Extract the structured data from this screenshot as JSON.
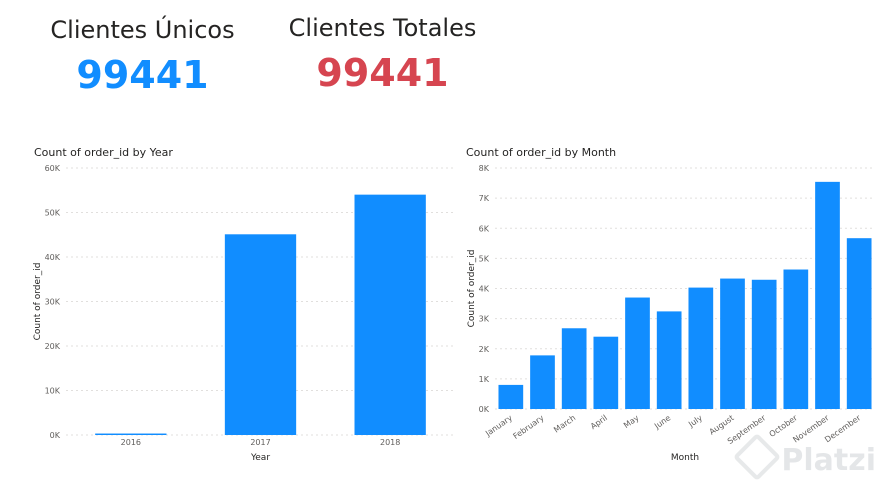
{
  "kpis": {
    "unique": {
      "label": "Clientes Únicos",
      "value": "99441"
    },
    "total": {
      "label": "Clientes Totales",
      "value": "99441"
    }
  },
  "watermark": "Platzi",
  "chart_data": [
    {
      "type": "bar",
      "title": "Count of order_id by Year",
      "xlabel": "Year",
      "ylabel": "Count of order_id",
      "categories": [
        "2016",
        "2017",
        "2018"
      ],
      "values": [
        329,
        45101,
        54011
      ],
      "ylim": [
        0,
        60000
      ],
      "yticks": [
        0,
        10000,
        20000,
        30000,
        40000,
        50000,
        60000
      ],
      "ytick_labels": [
        "0K",
        "10K",
        "20K",
        "30K",
        "40K",
        "50K",
        "60K"
      ],
      "grid": true,
      "color": "#118DFF"
    },
    {
      "type": "bar",
      "title": "Count of order_id by Month",
      "xlabel": "Month",
      "ylabel": "Count of order_id",
      "categories": [
        "January",
        "February",
        "March",
        "April",
        "May",
        "June",
        "July",
        "August",
        "September",
        "October",
        "November",
        "December"
      ],
      "values": [
        800,
        1780,
        2680,
        2400,
        3700,
        3240,
        4030,
        4330,
        4290,
        4630,
        7540,
        5670
      ],
      "ylim": [
        0,
        8000
      ],
      "yticks": [
        0,
        1000,
        2000,
        3000,
        4000,
        5000,
        6000,
        7000,
        8000
      ],
      "ytick_labels": [
        "0K",
        "1K",
        "2K",
        "3K",
        "4K",
        "5K",
        "6K",
        "7K",
        "8K"
      ],
      "grid": true,
      "color": "#118DFF"
    }
  ]
}
